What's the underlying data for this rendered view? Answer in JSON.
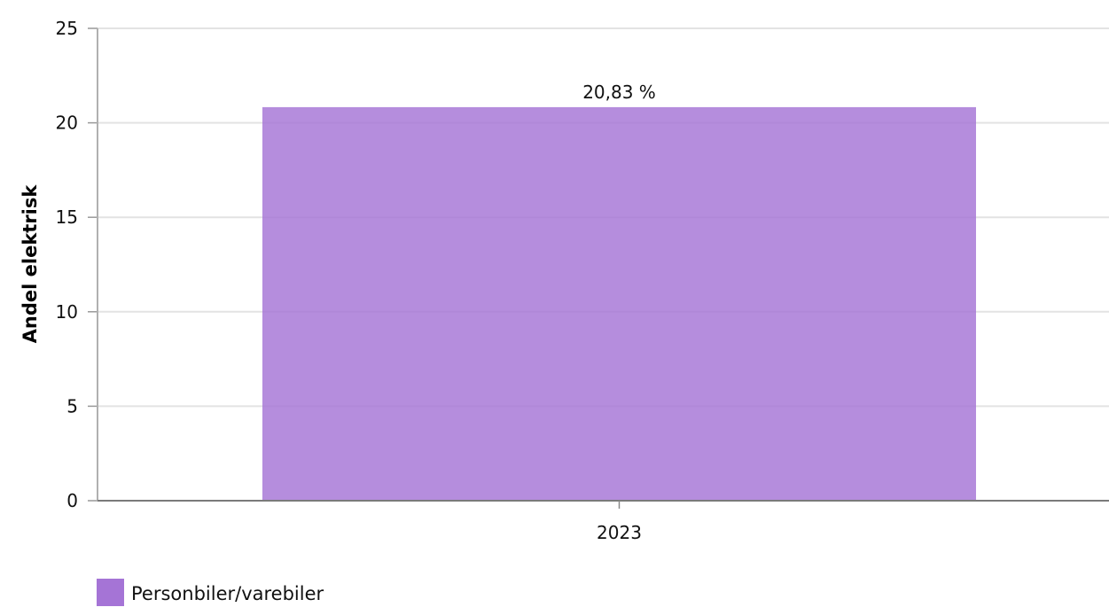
{
  "chart_data": {
    "type": "bar",
    "categories": [
      "2023"
    ],
    "series": [
      {
        "name": "Personbiler/varebiler",
        "values": [
          20.83
        ],
        "color": "#a574d6"
      }
    ],
    "data_labels": [
      "20,83 %"
    ],
    "ylabel": "Andel elektrisk",
    "ylim": [
      0,
      25
    ],
    "yticks": [
      0,
      5,
      10,
      15,
      20,
      25
    ],
    "grid": true,
    "legend": "bottom-left"
  }
}
